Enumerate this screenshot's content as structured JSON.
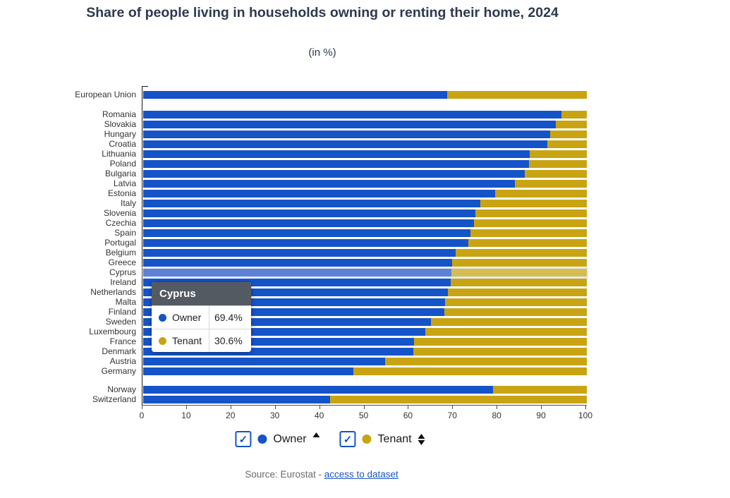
{
  "title": "Share of people living in households owning or renting their home, 2024",
  "subtitle": "(in %)",
  "chart_data": {
    "type": "bar",
    "orientation": "horizontal-stacked",
    "unit": "%",
    "series_names": [
      "Owner",
      "Tenant"
    ],
    "x_axis": {
      "min": 0,
      "max": 100,
      "ticks": [
        0,
        10,
        20,
        30,
        40,
        50,
        60,
        70,
        80,
        90,
        100
      ]
    },
    "legend_position": "bottom",
    "grid": false,
    "rows": [
      {
        "label": "European Union",
        "group": "eu",
        "owner": 68.6,
        "tenant": 31.4
      },
      {
        "label": "Romania",
        "group": "member",
        "owner": 94.3,
        "tenant": 5.7
      },
      {
        "label": "Slovakia",
        "group": "member",
        "owner": 93.0,
        "tenant": 7.0
      },
      {
        "label": "Hungary",
        "group": "member",
        "owner": 91.8,
        "tenant": 8.2
      },
      {
        "label": "Croatia",
        "group": "member",
        "owner": 91.1,
        "tenant": 8.9
      },
      {
        "label": "Lithuania",
        "group": "member",
        "owner": 87.1,
        "tenant": 12.9
      },
      {
        "label": "Poland",
        "group": "member",
        "owner": 86.9,
        "tenant": 13.1
      },
      {
        "label": "Bulgaria",
        "group": "member",
        "owner": 86.0,
        "tenant": 14.0
      },
      {
        "label": "Latvia",
        "group": "member",
        "owner": 83.8,
        "tenant": 16.2
      },
      {
        "label": "Estonia",
        "group": "member",
        "owner": 79.3,
        "tenant": 20.7
      },
      {
        "label": "Italy",
        "group": "member",
        "owner": 76.0,
        "tenant": 24.0
      },
      {
        "label": "Slovenia",
        "group": "member",
        "owner": 74.9,
        "tenant": 25.1
      },
      {
        "label": "Czechia",
        "group": "member",
        "owner": 74.6,
        "tenant": 25.4
      },
      {
        "label": "Spain",
        "group": "member",
        "owner": 73.8,
        "tenant": 26.2
      },
      {
        "label": "Portugal",
        "group": "member",
        "owner": 73.3,
        "tenant": 26.7
      },
      {
        "label": "Belgium",
        "group": "member",
        "owner": 70.5,
        "tenant": 29.5
      },
      {
        "label": "Greece",
        "group": "member",
        "owner": 69.7,
        "tenant": 30.3
      },
      {
        "label": "Cyprus",
        "group": "member",
        "owner": 69.4,
        "tenant": 30.6,
        "highlighted": true
      },
      {
        "label": "Ireland",
        "group": "member",
        "owner": 69.3,
        "tenant": 30.7
      },
      {
        "label": "Netherlands",
        "group": "member",
        "owner": 68.7,
        "tenant": 31.3
      },
      {
        "label": "Malta",
        "group": "member",
        "owner": 68.0,
        "tenant": 32.0
      },
      {
        "label": "Finland",
        "group": "member",
        "owner": 67.9,
        "tenant": 32.1
      },
      {
        "label": "Sweden",
        "group": "member",
        "owner": 64.8,
        "tenant": 35.2
      },
      {
        "label": "Luxembourg",
        "group": "member",
        "owner": 63.6,
        "tenant": 36.4
      },
      {
        "label": "France",
        "group": "member",
        "owner": 61.1,
        "tenant": 38.9
      },
      {
        "label": "Denmark",
        "group": "member",
        "owner": 60.9,
        "tenant": 39.1
      },
      {
        "label": "Austria",
        "group": "member",
        "owner": 54.5,
        "tenant": 45.5
      },
      {
        "label": "Germany",
        "group": "member",
        "owner": 47.3,
        "tenant": 52.7
      },
      {
        "label": "Norway",
        "group": "efta",
        "owner": 78.8,
        "tenant": 21.2
      },
      {
        "label": "Switzerland",
        "group": "efta",
        "owner": 42.1,
        "tenant": 57.9
      }
    ]
  },
  "tooltip": {
    "title": "Cyprus",
    "rows": [
      {
        "label": "Owner",
        "value": "69.4%"
      },
      {
        "label": "Tenant",
        "value": "30.6%"
      }
    ]
  },
  "legend": {
    "items": [
      {
        "label": "Owner",
        "checked": true,
        "check_glyph": "✓",
        "sort": "up"
      },
      {
        "label": "Tenant",
        "checked": true,
        "check_glyph": "✓",
        "sort": "updown"
      }
    ]
  },
  "source": {
    "prefix": "Source: Eurostat - ",
    "link_text": "access to dataset"
  },
  "colors": {
    "owner": "#1553c8",
    "tenant": "#c8a413",
    "owner_highlight": "#5d81d6",
    "tenant_highlight": "#d6bd52",
    "axis": "#333333",
    "checkbox": "#1553c8",
    "tooltip_header_bg": "#545a61",
    "link": "#1a54c8"
  }
}
